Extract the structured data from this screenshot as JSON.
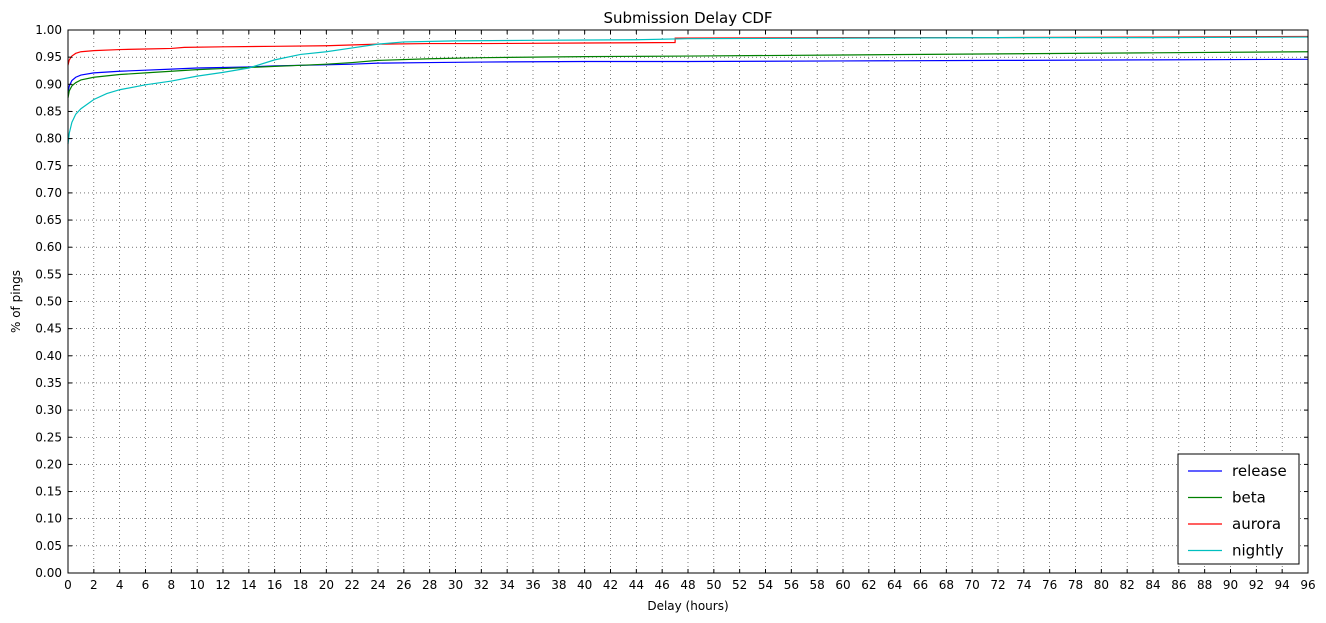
{
  "chart_data": {
    "type": "line",
    "title": "Submission Delay CDF",
    "xlabel": "Delay (hours)",
    "ylabel": "% of pings",
    "xlim": [
      0,
      96
    ],
    "ylim": [
      0.0,
      1.0
    ],
    "xticks": [
      0,
      2,
      4,
      6,
      8,
      10,
      12,
      14,
      16,
      18,
      20,
      22,
      24,
      26,
      28,
      30,
      32,
      34,
      36,
      38,
      40,
      42,
      44,
      46,
      48,
      50,
      52,
      54,
      56,
      58,
      60,
      62,
      64,
      66,
      68,
      70,
      72,
      74,
      76,
      78,
      80,
      82,
      84,
      86,
      88,
      90,
      92,
      94,
      96
    ],
    "yticks": [
      0.0,
      0.05,
      0.1,
      0.15,
      0.2,
      0.25,
      0.3,
      0.35,
      0.4,
      0.45,
      0.5,
      0.55,
      0.6,
      0.65,
      0.7,
      0.75,
      0.8,
      0.85,
      0.9,
      0.95,
      1.0
    ],
    "ytick_labels": [
      "0.00",
      "0.05",
      "0.10",
      "0.15",
      "0.20",
      "0.25",
      "0.30",
      "0.35",
      "0.40",
      "0.45",
      "0.50",
      "0.55",
      "0.60",
      "0.65",
      "0.70",
      "0.75",
      "0.80",
      "0.85",
      "0.90",
      "0.95",
      "1.00"
    ],
    "grid": true,
    "legend_position": "bottom-right",
    "series": [
      {
        "name": "release",
        "color": "#0000ff",
        "x": [
          0,
          0.1,
          0.3,
          0.6,
          1,
          2,
          4,
          6,
          8,
          10,
          12,
          14,
          16,
          18,
          20,
          22,
          24,
          28,
          32,
          40,
          48,
          60,
          72,
          84,
          96
        ],
        "y": [
          0.885,
          0.897,
          0.907,
          0.913,
          0.917,
          0.921,
          0.924,
          0.926,
          0.928,
          0.93,
          0.931,
          0.932,
          0.934,
          0.935,
          0.936,
          0.937,
          0.939,
          0.94,
          0.941,
          0.942,
          0.942,
          0.943,
          0.944,
          0.945,
          0.946
        ]
      },
      {
        "name": "beta",
        "color": "#008000",
        "x": [
          0,
          0.1,
          0.3,
          0.6,
          1,
          2,
          4,
          6,
          8,
          10,
          12,
          14,
          16,
          18,
          20,
          22,
          24,
          28,
          32,
          40,
          48,
          60,
          72,
          84,
          96
        ],
        "y": [
          0.875,
          0.888,
          0.897,
          0.903,
          0.908,
          0.913,
          0.918,
          0.921,
          0.924,
          0.927,
          0.929,
          0.931,
          0.933,
          0.935,
          0.937,
          0.94,
          0.944,
          0.947,
          0.949,
          0.951,
          0.952,
          0.954,
          0.956,
          0.958,
          0.96
        ]
      },
      {
        "name": "aurora",
        "color": "#ff0000",
        "x": [
          0,
          0.1,
          0.3,
          0.6,
          1,
          2,
          4,
          6,
          8,
          9,
          12,
          16,
          20,
          24,
          28,
          32,
          40,
          47,
          47.01,
          60,
          72,
          84,
          96
        ],
        "y": [
          0.935,
          0.945,
          0.952,
          0.957,
          0.96,
          0.962,
          0.964,
          0.965,
          0.966,
          0.968,
          0.969,
          0.97,
          0.971,
          0.974,
          0.975,
          0.975,
          0.976,
          0.977,
          0.985,
          0.986,
          0.986,
          0.987,
          0.988
        ]
      },
      {
        "name": "nightly",
        "color": "#00bfbf",
        "x": [
          0,
          0.1,
          0.3,
          0.6,
          1,
          2,
          3,
          4,
          6,
          8,
          10,
          12,
          14,
          16,
          18,
          20,
          22,
          24,
          26,
          30,
          36,
          44,
          48,
          60,
          72,
          84,
          96
        ],
        "y": [
          0.79,
          0.81,
          0.83,
          0.845,
          0.855,
          0.872,
          0.883,
          0.89,
          0.899,
          0.906,
          0.915,
          0.922,
          0.93,
          0.945,
          0.955,
          0.96,
          0.967,
          0.974,
          0.978,
          0.98,
          0.981,
          0.982,
          0.984,
          0.985,
          0.986,
          0.986,
          0.987
        ]
      }
    ]
  }
}
